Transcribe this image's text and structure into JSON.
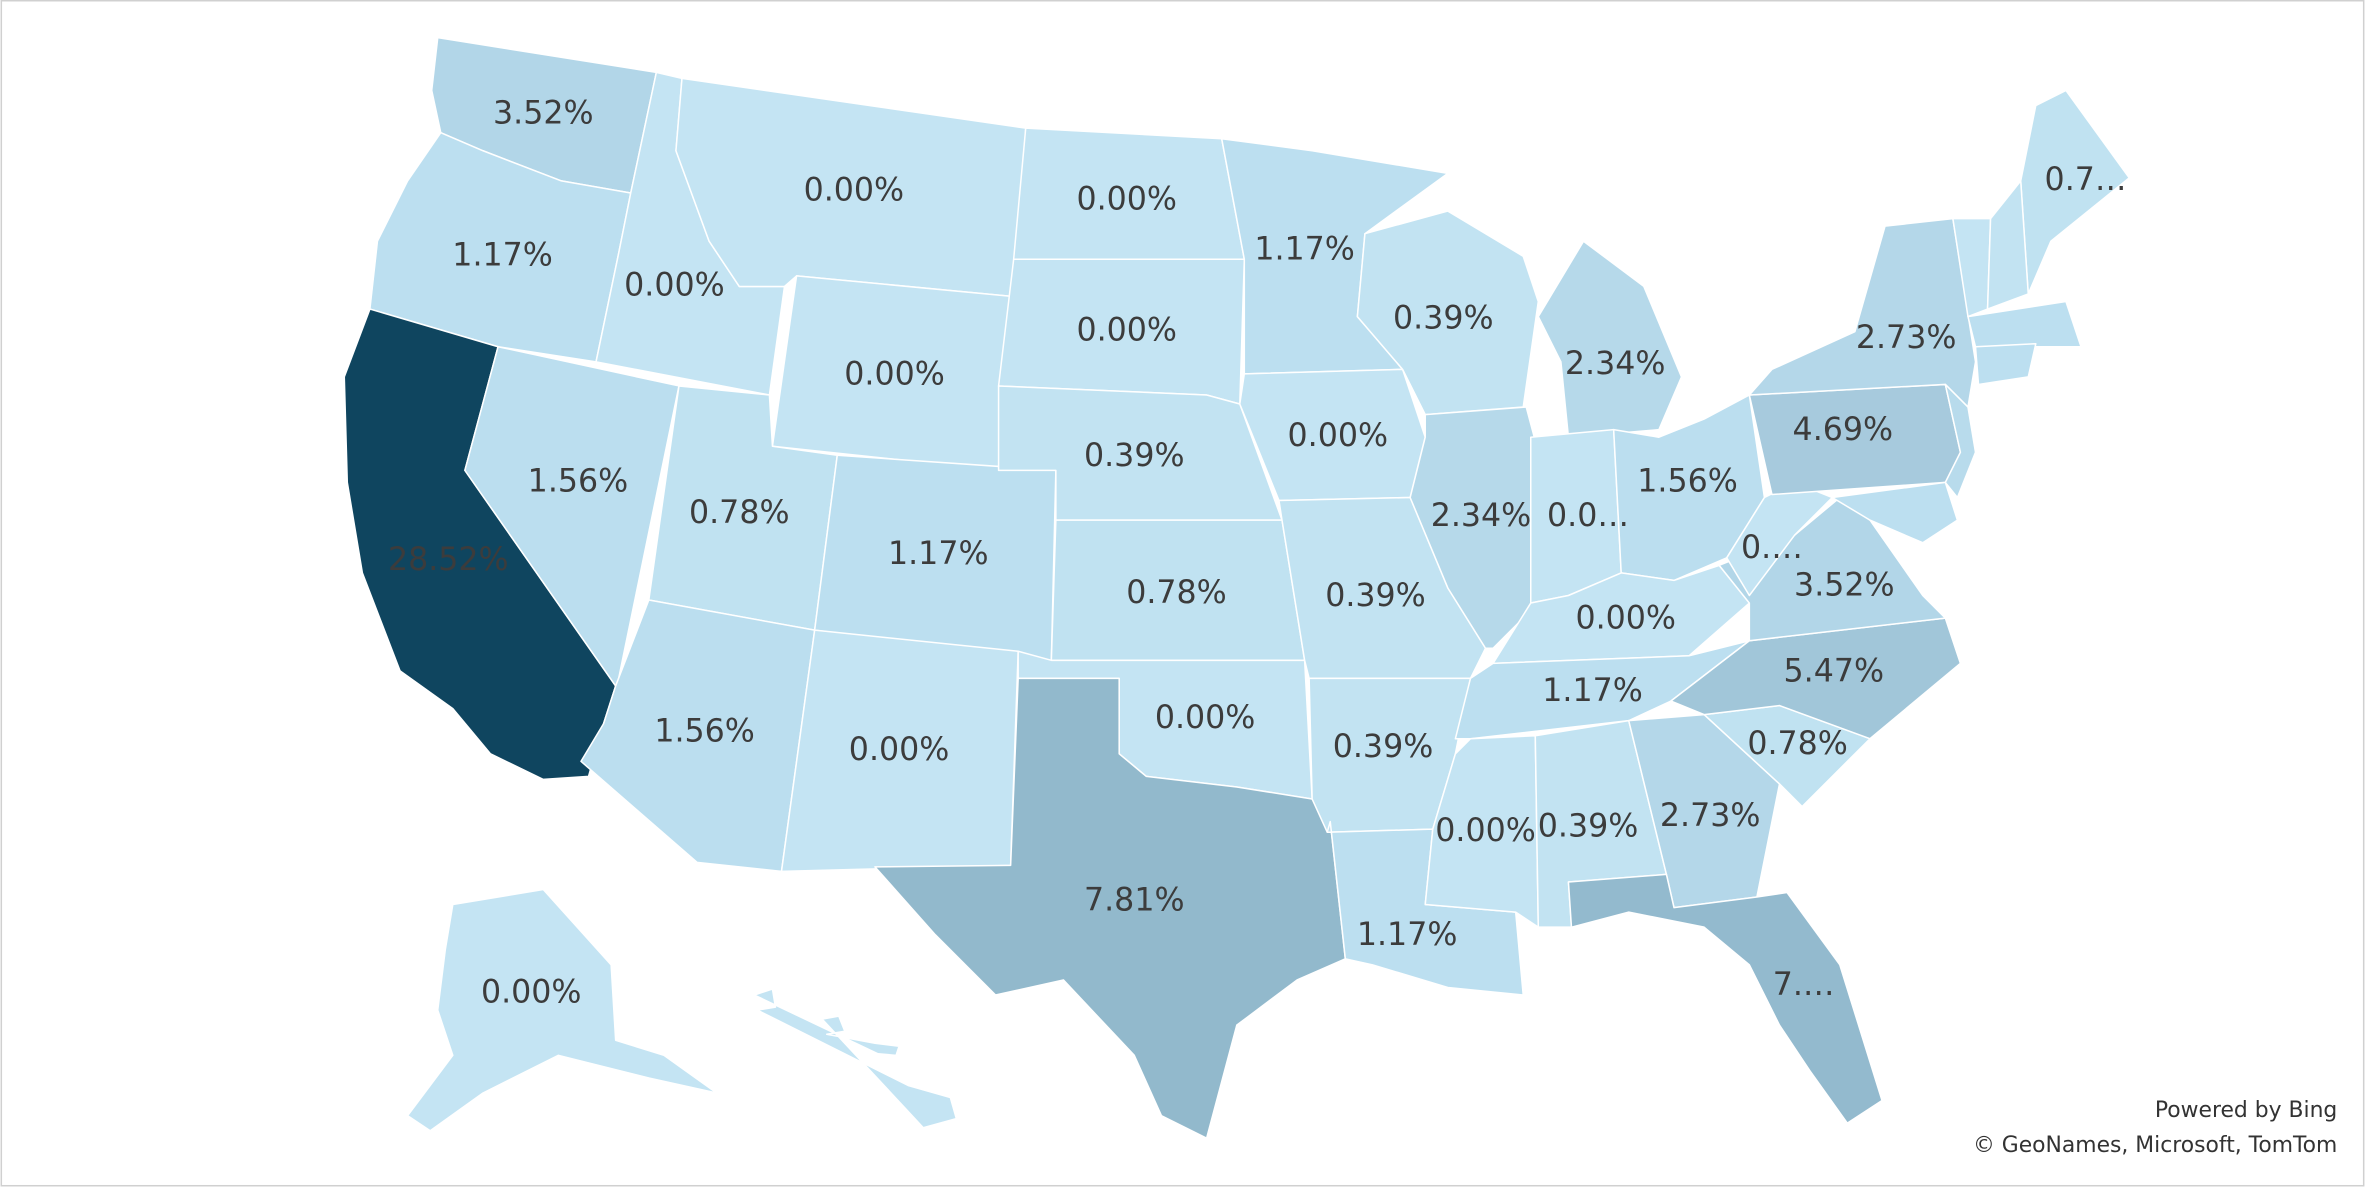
{
  "regions": [
    {
      "label": "3.52%",
      "color": "#b2d6e8"
    },
    {
      "label": "1.17%",
      "color": "#bcdff0"
    },
    {
      "label": "28.52%",
      "color": "#0f455f",
      "label_color": "#ffffff"
    },
    {
      "label": "1.56%",
      "color": "#bbdeef"
    },
    {
      "label": "0.00%",
      "color": "#c4e4f3"
    },
    {
      "label": "0.00%",
      "color": "#c4e4f3"
    },
    {
      "label": "0.00%",
      "color": "#c4e4f3"
    },
    {
      "label": "0.78%",
      "color": "#c0e2f1"
    },
    {
      "label": "1.17%",
      "color": "#bcdff0"
    },
    {
      "label": "1.56%",
      "color": "#bbdeef"
    },
    {
      "label": "0.00%",
      "color": "#c4e4f3"
    },
    {
      "label": "0.00%",
      "color": "#c4e4f3"
    },
    {
      "label": "0.00%",
      "color": "#c4e4f3"
    },
    {
      "label": "0.39%",
      "color": "#c2e3f2"
    },
    {
      "label": "0.78%",
      "color": "#c0e2f1"
    },
    {
      "label": "0.00%",
      "color": "#c4e4f3"
    },
    {
      "label": "7.81%",
      "color": "#92b9cc"
    },
    {
      "label": "1.17%",
      "color": "#bcdff0"
    },
    {
      "label": "0.00%",
      "color": "#c4e4f3"
    },
    {
      "label": "0.39%",
      "color": "#c2e3f2"
    },
    {
      "label": "0.39%",
      "color": "#c2e3f2"
    },
    {
      "label": "1.17%",
      "color": "#bcdff0"
    },
    {
      "label": "0.39%",
      "color": "#c2e3f2"
    },
    {
      "label": "2.34%",
      "color": "#b6d9ea"
    },
    {
      "label": "2.34%",
      "color": "#b6d9ea"
    },
    {
      "label": "0.0…",
      "color": "#c4e4f3"
    },
    {
      "label": "1.56%",
      "color": "#bbdeef"
    },
    {
      "label": "0.00%",
      "color": "#c4e4f3"
    },
    {
      "label": "1.17%",
      "color": "#bcdff0"
    },
    {
      "label": "0.00%",
      "color": "#c4e4f3"
    },
    {
      "label": "0.39%",
      "color": "#c2e3f2"
    },
    {
      "label": "2.73%",
      "color": "#b4d7e9"
    },
    {
      "label": "7.…",
      "color": "#93bace"
    },
    {
      "label": "0.78%",
      "color": "#c0e2f1"
    },
    {
      "label": "5.47%",
      "color": "#a1c6d9"
    },
    {
      "label": "3.52%",
      "color": "#b2d6e8"
    },
    {
      "label": "0.…",
      "color": "#c4e4f3"
    },
    {
      "label": "4.69%",
      "color": "#a7cadd"
    },
    {
      "label": "2.73%",
      "color": "#b4d7e9"
    },
    {
      "label": "0.7…",
      "color": "#c0e2f1"
    },
    {
      "label": "0.00%",
      "color": "#c4e4f3"
    },
    {
      "color": "#b8dbec"
    },
    {
      "color": "#bcdff0"
    },
    {
      "color": "#c4e4f3"
    },
    {
      "color": "#c2e3f2"
    },
    {
      "color": "#bcdff0"
    },
    {
      "color": "#bcdff0"
    },
    {
      "color": "#c4e4f3"
    }
  ],
  "attribution": [
    "Powered by Bing",
    "© GeoNames, Microsoft, TomTom"
  ]
}
